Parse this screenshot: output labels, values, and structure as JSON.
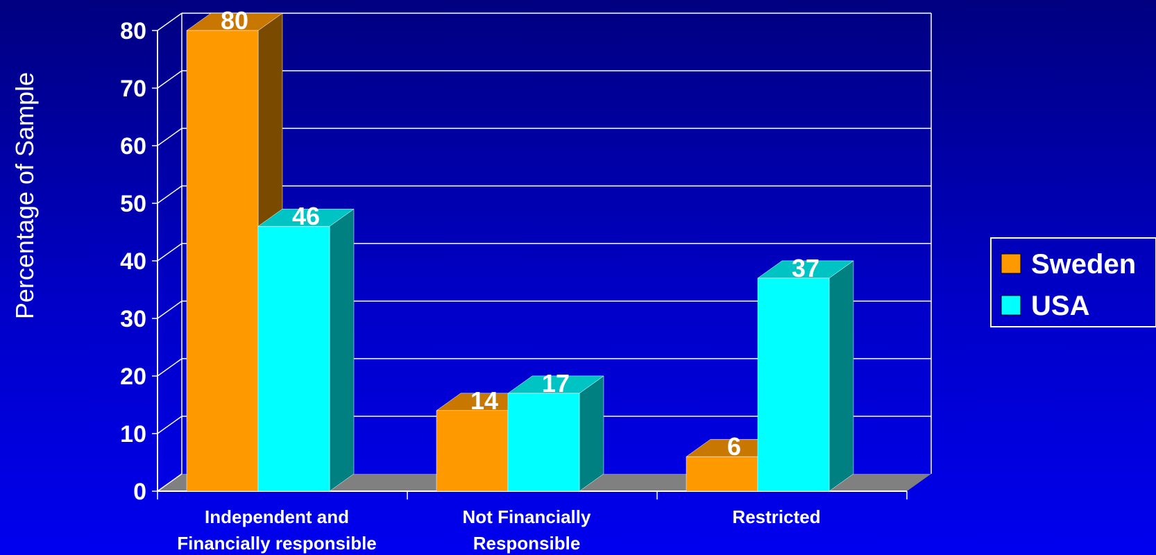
{
  "chart_data": {
    "type": "bar",
    "categories": [
      [
        "Independent and",
        "Financially responsible"
      ],
      [
        "Not Financially",
        "Responsible"
      ],
      [
        "Restricted"
      ]
    ],
    "series": [
      {
        "name": "Sweden",
        "values": [
          80,
          14,
          6
        ],
        "color": "#ff9900",
        "top_color": "#c87800",
        "side_color": "#7a4a00"
      },
      {
        "name": "USA",
        "values": [
          46,
          17,
          37
        ],
        "color": "#00ffff",
        "top_color": "#00c4c4",
        "side_color": "#008080"
      }
    ],
    "ylabel": "Percentage of Sample",
    "xlabel": "",
    "title": "",
    "ylim": [
      0,
      80
    ],
    "yticks": [
      0,
      10,
      20,
      30,
      40,
      50,
      60,
      70,
      80
    ],
    "grid": true,
    "legend_position": "right",
    "colors": {
      "floor": "#808080",
      "gridline": "#ffffff",
      "legend_border": "#ffffff",
      "text": "#ffffff"
    }
  }
}
